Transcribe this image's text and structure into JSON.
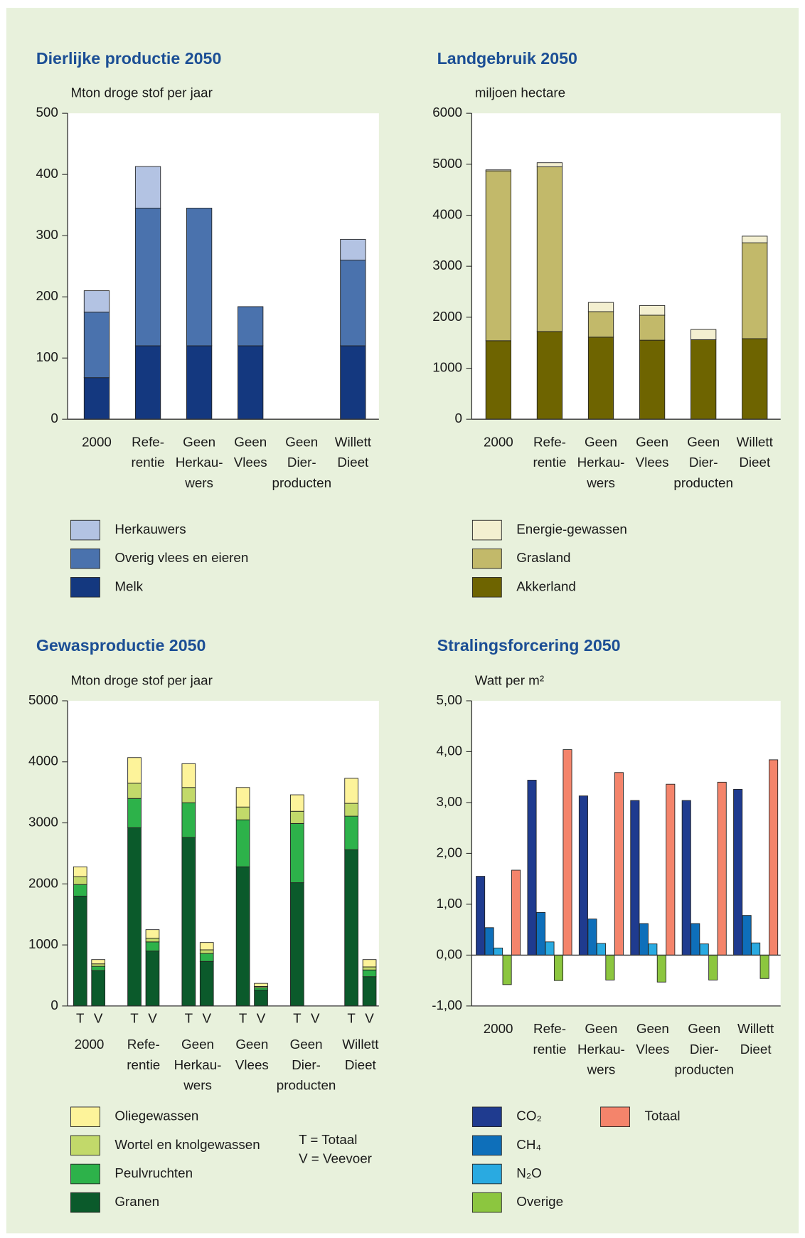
{
  "chart_data": [
    {
      "type": "stacked_bar",
      "title": "Dierlijke productie 2050",
      "ylabel": "Mton droge stof per jaar",
      "categories": [
        "2000",
        "Refe-\nrentie",
        "Geen\nHerkau-\nwers",
        "Geen\nVlees",
        "Geen\nDier-\nproducten",
        "Willett\nDieet"
      ],
      "series": [
        {
          "name": "Melk",
          "color": "#14387f",
          "values": [
            68,
            120,
            120,
            120,
            0,
            120
          ]
        },
        {
          "name": "Overig vlees en eieren",
          "color": "#4a72ad",
          "values": [
            107,
            225,
            225,
            64,
            0,
            140
          ]
        },
        {
          "name": "Herkauwers",
          "color": "#b3c3e3",
          "values": [
            35,
            68,
            0,
            0,
            0,
            34
          ]
        }
      ],
      "ylim": [
        0,
        500
      ],
      "yticks": [
        0,
        100,
        200,
        300,
        400,
        500
      ]
    },
    {
      "type": "stacked_bar",
      "title": "Landgebruik 2050",
      "ylabel": "miljoen hectare",
      "categories": [
        "2000",
        "Refe-\nrentie",
        "Geen\nHerkau-\nwers",
        "Geen\nVlees",
        "Geen\nDier-\nproducten",
        "Willett\nDieet"
      ],
      "series": [
        {
          "name": "Akkerland",
          "color": "#6e6400",
          "values": [
            1540,
            1720,
            1610,
            1550,
            1560,
            1580
          ]
        },
        {
          "name": "Grasland",
          "color": "#c2b96a",
          "values": [
            3330,
            3230,
            500,
            490,
            0,
            1880
          ]
        },
        {
          "name": "Energie-gewassen",
          "color": "#f3efd0",
          "values": [
            20,
            80,
            180,
            190,
            200,
            130
          ]
        }
      ],
      "ylim": [
        0,
        6000
      ],
      "yticks": [
        0,
        1000,
        2000,
        3000,
        4000,
        5000,
        6000
      ]
    },
    {
      "type": "grouped_stacked_bar",
      "title": "Gewasproductie 2050",
      "ylabel": "Mton droge stof per jaar",
      "categories": [
        "2000",
        "Refe-\nrentie",
        "Geen\nHerkau-\nwers",
        "Geen\nVlees",
        "Geen\nDier-\nproducten",
        "Willett\nDieet"
      ],
      "subcategories": [
        "T",
        "V"
      ],
      "notes": [
        "T = Totaal",
        "V = Veevoer"
      ],
      "series": [
        {
          "name": "Granen",
          "color": "#0b5a2b",
          "values": [
            [
              1800,
              580
            ],
            [
              2920,
              900
            ],
            [
              2760,
              730
            ],
            [
              2280,
              260
            ],
            [
              2020,
              0
            ],
            [
              2560,
              480
            ]
          ]
        },
        {
          "name": "Peulvruchten",
          "color": "#2db24a",
          "values": [
            [
              190,
              70
            ],
            [
              480,
              150
            ],
            [
              570,
              130
            ],
            [
              770,
              40
            ],
            [
              970,
              0
            ],
            [
              550,
              110
            ]
          ]
        },
        {
          "name": "Wortel en knolgewassen",
          "color": "#c2d96a",
          "values": [
            [
              130,
              40
            ],
            [
              250,
              60
            ],
            [
              250,
              60
            ],
            [
              210,
              20
            ],
            [
              200,
              0
            ],
            [
              210,
              50
            ]
          ]
        },
        {
          "name": "Oliegewassen",
          "color": "#fdf39a",
          "values": [
            [
              160,
              70
            ],
            [
              420,
              140
            ],
            [
              390,
              120
            ],
            [
              320,
              50
            ],
            [
              270,
              0
            ],
            [
              410,
              120
            ]
          ]
        }
      ],
      "ylim": [
        0,
        5000
      ],
      "yticks": [
        0,
        1000,
        2000,
        3000,
        4000,
        5000
      ]
    },
    {
      "type": "grouped_bar",
      "title": "Stralingsforcering 2050",
      "ylabel": "Watt per m²",
      "categories": [
        "2000",
        "Refe-\nrentie",
        "Geen\nHerkau-\nwers",
        "Geen\nVlees",
        "Geen\nDier-\nproducten",
        "Willett\nDieet"
      ],
      "series": [
        {
          "name": "CO₂",
          "color": "#1f3b8f",
          "values": [
            1.55,
            3.44,
            3.13,
            3.04,
            3.04,
            3.26
          ]
        },
        {
          "name": "CH₄",
          "color": "#0e6fba",
          "values": [
            0.54,
            0.84,
            0.71,
            0.62,
            0.62,
            0.78
          ]
        },
        {
          "name": "N₂O",
          "color": "#29aae1",
          "values": [
            0.14,
            0.26,
            0.23,
            0.22,
            0.22,
            0.24
          ]
        },
        {
          "name": "Overige",
          "color": "#8cc63f",
          "values": [
            -0.58,
            -0.5,
            -0.49,
            -0.53,
            -0.49,
            -0.46
          ]
        },
        {
          "name": "Totaal",
          "color": "#f4846b",
          "values": [
            1.67,
            4.04,
            3.59,
            3.36,
            3.4,
            3.84
          ]
        }
      ],
      "ylim": [
        -1,
        5
      ],
      "yticks": [
        {
          "value": -1,
          "label": "-1,00"
        },
        {
          "value": 0,
          "label": "0,00"
        },
        {
          "value": 1,
          "label": "1,00"
        },
        {
          "value": 2,
          "label": "2,00"
        },
        {
          "value": 3,
          "label": "3,00"
        },
        {
          "value": 4,
          "label": "4,00"
        },
        {
          "value": 5,
          "label": "5,00"
        }
      ]
    }
  ]
}
